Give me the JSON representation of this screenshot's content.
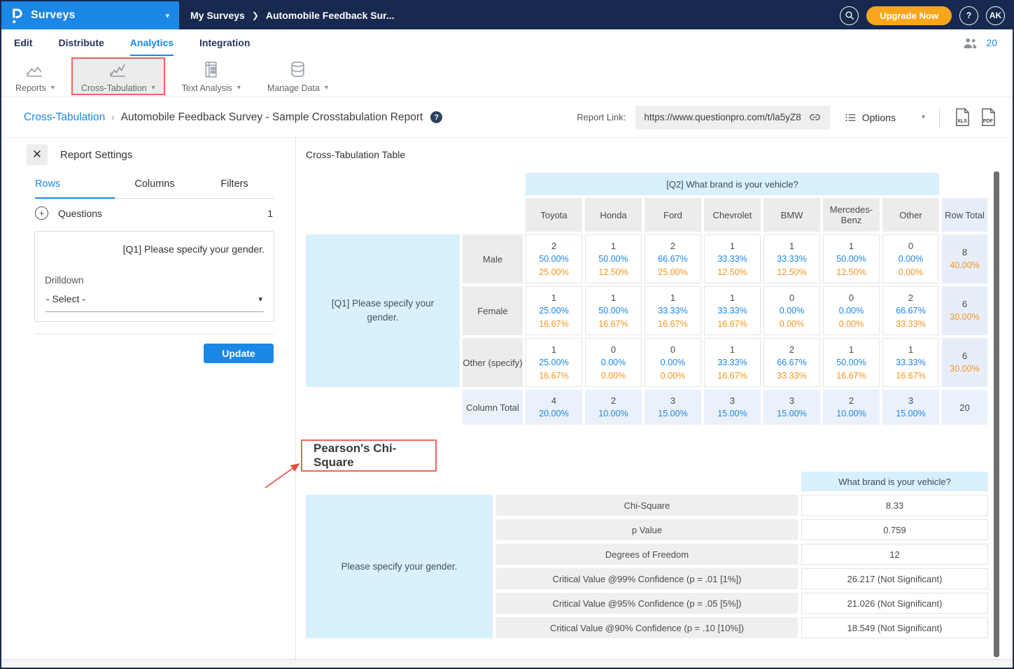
{
  "topbar": {
    "app_name": "Surveys",
    "breadcrumb": [
      "My Surveys",
      "Automobile Feedback Sur..."
    ],
    "upgrade_label": "Upgrade Now",
    "help_label": "?",
    "avatar_initials": "AK",
    "icons": [
      "questionpro-logo",
      "dropdown-caret",
      "search",
      "help",
      "avatar"
    ]
  },
  "nav": {
    "tabs": [
      "Edit",
      "Distribute",
      "Analytics",
      "Integration"
    ],
    "active_tab": "Analytics",
    "respondent_count": "20"
  },
  "toolbar": {
    "items": [
      {
        "label": "Reports",
        "icon": "line-chart",
        "active": false
      },
      {
        "label": "Cross-Tabulation",
        "icon": "cross-tab-chart",
        "active": true
      },
      {
        "label": "Text Analysis",
        "icon": "document-grid",
        "active": false
      },
      {
        "label": "Manage Data",
        "icon": "database",
        "active": false
      }
    ]
  },
  "report_header": {
    "breadcrumb_link": "Cross-Tabulation",
    "separator": "›",
    "title": "Automobile Feedback Survey - Sample Crosstabulation Report",
    "help_glyph": "?",
    "report_link_label": "Report Link:",
    "report_link_url": "https://www.questionpro.com/t/la5yZ8",
    "options_label": "Options",
    "export_xls_label": "XLS",
    "export_pdf_label": "PDF"
  },
  "settings_panel": {
    "title": "Report Settings",
    "close_glyph": "✕",
    "tabs": [
      "Rows",
      "Columns",
      "Filters"
    ],
    "active_tab": "Rows",
    "questions_label": "Questions",
    "questions_count": "1",
    "question_text": "[Q1] Please specify your gender.",
    "drilldown_label": "Drilldown",
    "drilldown_value": "- Select -",
    "update_label": "Update"
  },
  "crosstab": {
    "section_title": "Cross-Tabulation Table",
    "column_question": "[Q2] What brand is your vehicle?",
    "row_question": "[Q1] Please specify your gender.",
    "brands": [
      "Toyota",
      "Honda",
      "Ford",
      "Chevrolet",
      "BMW",
      "Mercedes-Benz",
      "Other"
    ],
    "row_total_label": "Row Total",
    "column_total_label": "Column Total",
    "rows": [
      {
        "label": "Male",
        "cells": [
          [
            "2",
            "50.00%",
            "25.00%"
          ],
          [
            "1",
            "50.00%",
            "12.50%"
          ],
          [
            "2",
            "66.67%",
            "25.00%"
          ],
          [
            "1",
            "33.33%",
            "12.50%"
          ],
          [
            "1",
            "33.33%",
            "12.50%"
          ],
          [
            "1",
            "50.00%",
            "12.50%"
          ],
          [
            "0",
            "0.00%",
            "0.00%"
          ]
        ],
        "total": [
          "8",
          "40.00%"
        ]
      },
      {
        "label": "Female",
        "cells": [
          [
            "1",
            "25.00%",
            "16.67%"
          ],
          [
            "1",
            "50.00%",
            "16.67%"
          ],
          [
            "1",
            "33.33%",
            "16.67%"
          ],
          [
            "1",
            "33.33%",
            "16.67%"
          ],
          [
            "0",
            "0.00%",
            "0.00%"
          ],
          [
            "0",
            "0.00%",
            "0.00%"
          ],
          [
            "2",
            "66.67%",
            "33.33%"
          ]
        ],
        "total": [
          "6",
          "30.00%"
        ]
      },
      {
        "label": "Other (specify)",
        "cells": [
          [
            "1",
            "25.00%",
            "16.67%"
          ],
          [
            "0",
            "0.00%",
            "0.00%"
          ],
          [
            "0",
            "0.00%",
            "0.00%"
          ],
          [
            "1",
            "33.33%",
            "16.67%"
          ],
          [
            "2",
            "66.67%",
            "33.33%"
          ],
          [
            "1",
            "50.00%",
            "16.67%"
          ],
          [
            "1",
            "33.33%",
            "16.67%"
          ]
        ],
        "total": [
          "6",
          "30.00%"
        ]
      }
    ],
    "column_totals": {
      "cells": [
        [
          "4",
          "20.00%"
        ],
        [
          "2",
          "10.00%"
        ],
        [
          "3",
          "15.00%"
        ],
        [
          "3",
          "15.00%"
        ],
        [
          "3",
          "15.00%"
        ],
        [
          "2",
          "10.00%"
        ],
        [
          "3",
          "15.00%"
        ]
      ],
      "grand_total": "20"
    }
  },
  "chi_square": {
    "section_title": "Pearson's Chi-Square",
    "column_header": "What brand is your vehicle?",
    "row_header": "Please specify your gender.",
    "rows": [
      {
        "label": "Chi-Square",
        "value": "8.33"
      },
      {
        "label": "p Value",
        "value": "0.759"
      },
      {
        "label": "Degrees of Freedom",
        "value": "12"
      },
      {
        "label": "Critical Value @99% Confidence (p = .01 [1%])",
        "value": "26.217 (Not Significant)"
      },
      {
        "label": "Critical Value @95% Confidence (p = .05 [5%])",
        "value": "21.026 (Not Significant)"
      },
      {
        "label": "Critical Value @90% Confidence (p = .10 [10%])",
        "value": "18.549 (Not Significant)"
      }
    ]
  },
  "colors": {
    "brand_blue": "#1b87e6",
    "navy": "#17294e",
    "orange_button": "#f9a61c",
    "light_blue_cell": "#d9f0fd",
    "total_blue_cell": "#e7eef9",
    "gray_cell": "#ececec",
    "percent_blue": "#1b87e6",
    "percent_orange": "#f7941d",
    "annotation_red": "#e8483f"
  }
}
